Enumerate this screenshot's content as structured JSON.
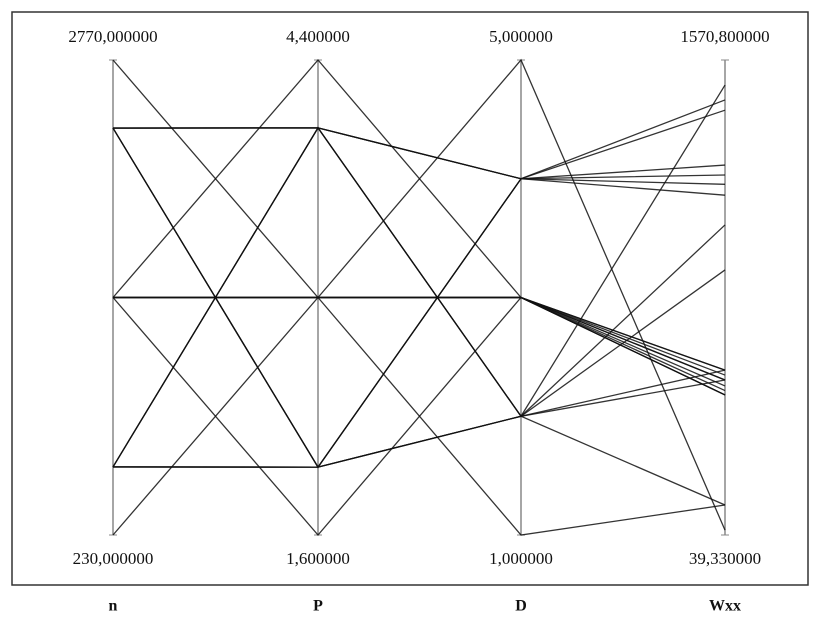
{
  "chart_data": {
    "type": "parallel",
    "color": "#111111",
    "axes": [
      {
        "name": "n",
        "lim": [
          230,
          2770
        ],
        "ticks": [
          {
            "value": 2770,
            "label": "2770,000000"
          },
          {
            "value": 230,
            "label": "230,000000"
          }
        ]
      },
      {
        "name": "P",
        "lim": [
          1.6,
          4.4
        ],
        "ticks": [
          {
            "value": 4.4,
            "label": "4,400000"
          },
          {
            "value": 1.6,
            "label": "1,600000"
          }
        ]
      },
      {
        "name": "D",
        "lim": [
          1,
          5
        ],
        "ticks": [
          {
            "value": 5,
            "label": "5,000000"
          },
          {
            "value": 1,
            "label": "1,000000"
          }
        ]
      },
      {
        "name": "Wxx",
        "lim": [
          39.33,
          1570.8
        ],
        "ticks": [
          {
            "value": 1570.8,
            "label": "1570,800000"
          },
          {
            "value": 39.33,
            "label": "39,330000"
          }
        ]
      }
    ],
    "rows": [
      [
        2406,
        4,
        4,
        1232
      ],
      [
        2406,
        4,
        2,
        539
      ],
      [
        2406,
        2,
        4,
        1135
      ],
      [
        2406,
        2,
        2,
        894
      ],
      [
        594,
        4,
        4,
        1442
      ],
      [
        594,
        4,
        2,
        571
      ],
      [
        594,
        2,
        4,
        1200
      ],
      [
        594,
        2,
        2,
        1039
      ],
      [
        230,
        3,
        3,
        491
      ],
      [
        2770,
        3,
        3,
        539
      ],
      [
        1500,
        1.6,
        3,
        571
      ],
      [
        1500,
        4.4,
        3,
        491
      ],
      [
        1500,
        3,
        1,
        136
      ],
      [
        1500,
        3,
        5,
        55
      ],
      [
        1500,
        3,
        3,
        539
      ],
      [
        1500,
        3,
        3,
        555
      ],
      [
        1500,
        3,
        3,
        520
      ],
      [
        1500,
        3,
        3,
        505
      ],
      [
        1500,
        3,
        3,
        571
      ],
      [
        1500,
        3,
        3,
        491
      ],
      [
        2406,
        4,
        4,
        1409
      ],
      [
        594,
        2,
        2,
        1490
      ],
      [
        2406,
        2,
        4,
        1170
      ],
      [
        594,
        4,
        2,
        136
      ]
    ]
  }
}
